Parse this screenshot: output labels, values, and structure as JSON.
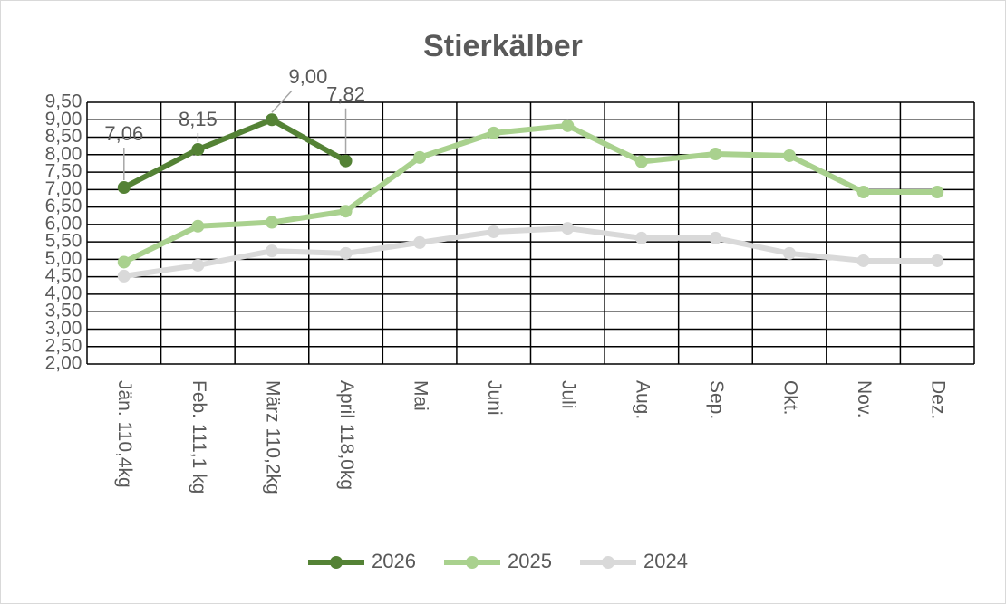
{
  "chart_data": {
    "type": "line",
    "title": "Stierkälber",
    "categories": [
      "Jän.  110,4kg",
      "Feb.  111,1 kg",
      "März 110,2kg",
      "April  118,0kg",
      "Mai",
      "Juni",
      "Juli",
      "Aug.",
      "Sep.",
      "Okt.",
      "Nov.",
      "Dez."
    ],
    "series": [
      {
        "name": "2026",
        "color": "#548235",
        "values": [
          7.06,
          8.15,
          9.0,
          7.82,
          null,
          null,
          null,
          null,
          null,
          null,
          null,
          null
        ],
        "value_labels": [
          "7,06",
          "8,15",
          "9,00",
          "7,82",
          null,
          null,
          null,
          null,
          null,
          null,
          null,
          null
        ]
      },
      {
        "name": "2025",
        "color": "#a9d18e",
        "values": [
          4.92,
          5.95,
          6.06,
          6.38,
          7.92,
          8.62,
          8.83,
          7.8,
          8.02,
          7.97,
          6.93,
          6.93
        ]
      },
      {
        "name": "2024",
        "color": "#d9d9d9",
        "values": [
          4.52,
          4.83,
          5.24,
          5.17,
          5.48,
          5.79,
          5.89,
          5.61,
          5.61,
          5.17,
          4.96,
          4.96
        ]
      }
    ],
    "ylim": [
      2,
      9.5
    ],
    "yticks": [
      {
        "value": 2,
        "label": "2,00"
      },
      {
        "value": 2.5,
        "label": "2,50"
      },
      {
        "value": 3,
        "label": "3,00"
      },
      {
        "value": 3.5,
        "label": "3,50"
      },
      {
        "value": 4,
        "label": "4,00"
      },
      {
        "value": 4.5,
        "label": "4,50"
      },
      {
        "value": 5,
        "label": "5,00"
      },
      {
        "value": 5.5,
        "label": "5,50"
      },
      {
        "value": 6,
        "label": "6,00"
      },
      {
        "value": 6.5,
        "label": "6,50"
      },
      {
        "value": 7,
        "label": "7,00"
      },
      {
        "value": 7.5,
        "label": "7,50"
      },
      {
        "value": 8,
        "label": "8,00"
      },
      {
        "value": 8.5,
        "label": "8,50"
      },
      {
        "value": 9,
        "label": "9,00"
      },
      {
        "value": 9.5,
        "label": "9,50"
      }
    ],
    "grid": true,
    "legend": "bottom"
  }
}
